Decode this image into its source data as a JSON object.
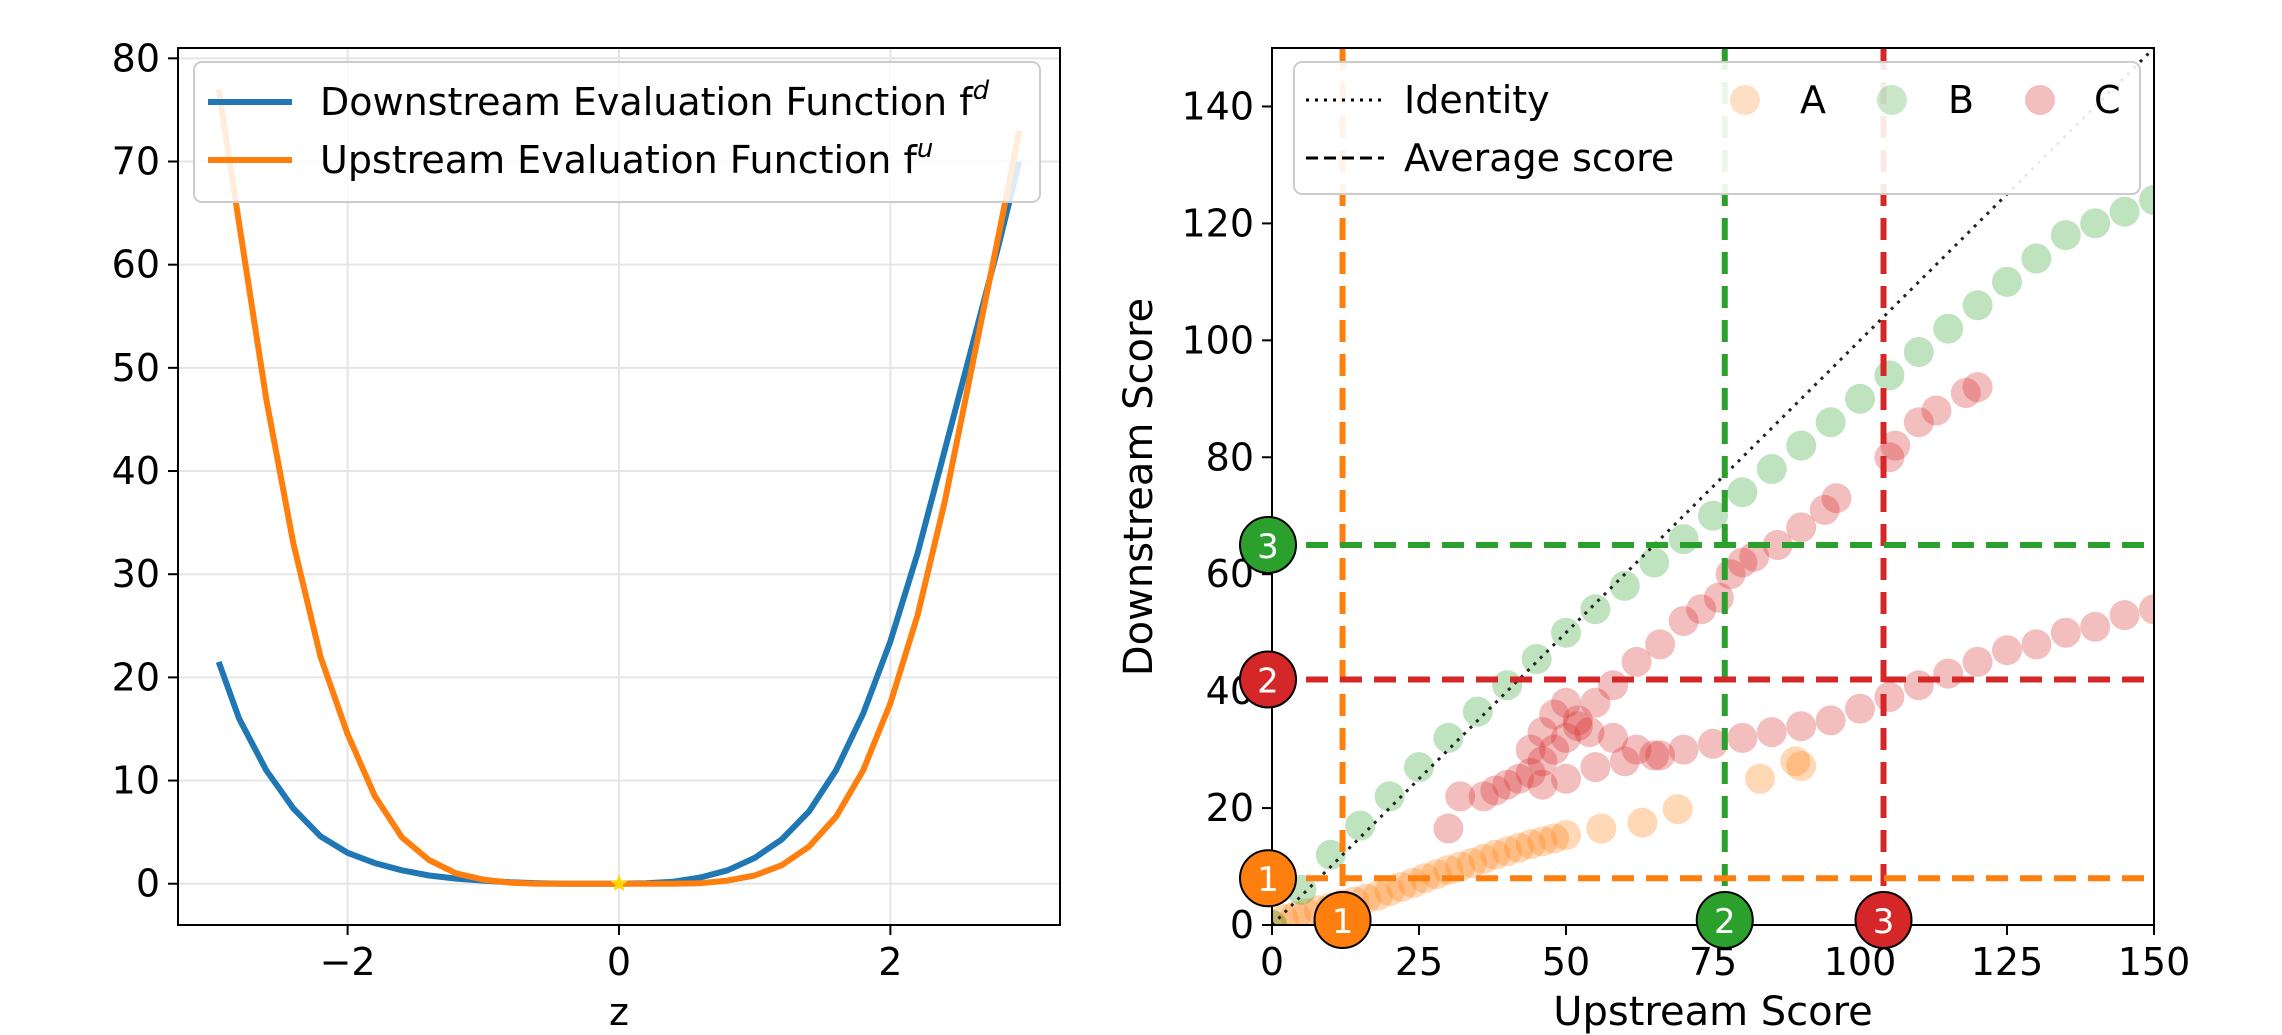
{
  "chart_data": [
    {
      "type": "line",
      "title": "",
      "xlabel": "z",
      "ylabel": "",
      "xlim": [
        -3.25,
        3.25
      ],
      "ylim": [
        -4,
        81
      ],
      "xticks": [
        -2,
        0,
        2
      ],
      "xtick_labels": [
        "−2",
        "0",
        "2"
      ],
      "yticks": [
        0,
        10,
        20,
        30,
        40,
        50,
        60,
        70,
        80
      ],
      "ytick_labels": [
        "0",
        "10",
        "20",
        "30",
        "40",
        "50",
        "60",
        "70",
        "80"
      ],
      "grid": true,
      "legend_position": "top",
      "legend": [
        {
          "label": "Downstream Evaluation Function f",
          "sup": "d",
          "color": "#1f77b4"
        },
        {
          "label": "Upstream Evaluation Function f",
          "sup": "u",
          "color": "#ff7f0e"
        }
      ],
      "series": [
        {
          "name": "Downstream Evaluation Function f^d",
          "color": "#1f77b4",
          "x": [
            -2.95,
            -2.8,
            -2.6,
            -2.4,
            -2.2,
            -2.0,
            -1.8,
            -1.6,
            -1.4,
            -1.2,
            -1.0,
            -0.8,
            -0.6,
            -0.4,
            -0.2,
            0.0,
            0.2,
            0.4,
            0.6,
            0.8,
            1.0,
            1.2,
            1.4,
            1.6,
            1.8,
            2.0,
            2.2,
            2.4,
            2.6,
            2.8,
            2.95
          ],
          "y": [
            21.5,
            16.0,
            11.0,
            7.3,
            4.6,
            3.0,
            2.0,
            1.3,
            0.8,
            0.5,
            0.3,
            0.15,
            0.05,
            0.0,
            0.0,
            0.0,
            0.05,
            0.2,
            0.6,
            1.3,
            2.5,
            4.3,
            7.0,
            11.0,
            16.5,
            23.5,
            32.0,
            42.0,
            52.0,
            62.0,
            70.0
          ]
        },
        {
          "name": "Upstream Evaluation Function f^u",
          "color": "#ff7f0e",
          "x": [
            -2.95,
            -2.8,
            -2.6,
            -2.4,
            -2.2,
            -2.0,
            -1.8,
            -1.6,
            -1.4,
            -1.2,
            -1.0,
            -0.8,
            -0.6,
            -0.4,
            -0.2,
            0.0,
            0.2,
            0.4,
            0.6,
            0.8,
            1.0,
            1.2,
            1.4,
            1.6,
            1.8,
            2.0,
            2.2,
            2.4,
            2.6,
            2.8,
            2.95
          ],
          "y": [
            77.0,
            64.0,
            47.0,
            33.0,
            22.0,
            14.5,
            8.5,
            4.5,
            2.3,
            1.0,
            0.4,
            0.1,
            0.0,
            0.0,
            0.0,
            0.0,
            0.0,
            0.0,
            0.05,
            0.3,
            0.8,
            1.8,
            3.6,
            6.5,
            11.0,
            17.5,
            26.0,
            37.0,
            50.0,
            63.0,
            73.0
          ]
        }
      ],
      "marker": {
        "x": 0,
        "y": 0,
        "shape": "star",
        "color": "#ffd700"
      }
    },
    {
      "type": "scatter",
      "title": "",
      "xlabel": "Upstream Score",
      "ylabel": "Downstream Score",
      "xlim": [
        0,
        150
      ],
      "ylim": [
        0,
        150
      ],
      "xticks": [
        0,
        25,
        50,
        75,
        100,
        125,
        150
      ],
      "xtick_labels": [
        "0",
        "25",
        "50",
        "75",
        "100",
        "125",
        "150"
      ],
      "yticks": [
        0,
        20,
        40,
        60,
        80,
        100,
        120,
        140
      ],
      "ytick_labels": [
        "0",
        "20",
        "40",
        "60",
        "80",
        "100",
        "120",
        "140"
      ],
      "grid": false,
      "legend_position": "top",
      "legend_lines": [
        {
          "label": "Identity",
          "style": "dotted"
        },
        {
          "label": "Average score",
          "style": "dashed"
        }
      ],
      "series": [
        {
          "name": "A",
          "color": "#ff7f0e",
          "points": [
            [
              0,
              0
            ],
            [
              2,
              1
            ],
            [
              4,
              1.5
            ],
            [
              6,
              2
            ],
            [
              8,
              2.5
            ],
            [
              10,
              3
            ],
            [
              12,
              3.5
            ],
            [
              14,
              4
            ],
            [
              16,
              4.5
            ],
            [
              18,
              5
            ],
            [
              20,
              5.8
            ],
            [
              22,
              6.5
            ],
            [
              24,
              7.2
            ],
            [
              26,
              8
            ],
            [
              28,
              8.7
            ],
            [
              30,
              9.4
            ],
            [
              32,
              10
            ],
            [
              34,
              10.6
            ],
            [
              36,
              11.3
            ],
            [
              38,
              12
            ],
            [
              40,
              12.6
            ],
            [
              42,
              13.2
            ],
            [
              44,
              13.8
            ],
            [
              46,
              14.3
            ],
            [
              48,
              14.8
            ],
            [
              50,
              15.4
            ],
            [
              56,
              16.5
            ],
            [
              63,
              17.5
            ],
            [
              69,
              19.8
            ],
            [
              83,
              25
            ],
            [
              90,
              27.2
            ],
            [
              89,
              28
            ]
          ]
        },
        {
          "name": "B",
          "color": "#2ca02c",
          "points": [
            [
              0,
              0
            ],
            [
              5,
              6
            ],
            [
              10,
              12
            ],
            [
              15,
              17
            ],
            [
              20,
              22
            ],
            [
              25,
              27
            ],
            [
              30,
              32
            ],
            [
              35,
              36.5
            ],
            [
              40,
              41
            ],
            [
              45,
              45.5
            ],
            [
              50,
              50
            ],
            [
              55,
              54
            ],
            [
              60,
              58
            ],
            [
              65,
              62
            ],
            [
              70,
              66
            ],
            [
              75,
              70
            ],
            [
              80,
              74
            ],
            [
              85,
              78
            ],
            [
              90,
              82
            ],
            [
              95,
              86
            ],
            [
              100,
              90
            ],
            [
              105,
              94
            ],
            [
              110,
              98
            ],
            [
              115,
              102
            ],
            [
              120,
              106
            ],
            [
              125,
              110
            ],
            [
              130,
              114
            ],
            [
              135,
              118
            ],
            [
              140,
              120
            ],
            [
              145,
              122
            ],
            [
              150,
              124
            ]
          ]
        },
        {
          "name": "C",
          "color": "#d62728",
          "points": [
            [
              30,
              16.5
            ],
            [
              32,
              22
            ],
            [
              36,
              22
            ],
            [
              38,
              23
            ],
            [
              40,
              24
            ],
            [
              42,
              25
            ],
            [
              44,
              26
            ],
            [
              46,
              28
            ],
            [
              48,
              30
            ],
            [
              50,
              32
            ],
            [
              52,
              34
            ],
            [
              55,
              38
            ],
            [
              58,
              41
            ],
            [
              62,
              45
            ],
            [
              66,
              48
            ],
            [
              70,
              52
            ],
            [
              73,
              54
            ],
            [
              76,
              56
            ],
            [
              78,
              60
            ],
            [
              80,
              62
            ],
            [
              82,
              63
            ],
            [
              86,
              65
            ],
            [
              90,
              68
            ],
            [
              94,
              71
            ],
            [
              96,
              73
            ],
            [
              105,
              80
            ],
            [
              106,
              82
            ],
            [
              110,
              86
            ],
            [
              113,
              88
            ],
            [
              118,
              91
            ],
            [
              120,
              92
            ],
            [
              46,
              24
            ],
            [
              50,
              25
            ],
            [
              55,
              27
            ],
            [
              60,
              28
            ],
            [
              65,
              29
            ],
            [
              70,
              30
            ],
            [
              75,
              31
            ],
            [
              80,
              32
            ],
            [
              85,
              33
            ],
            [
              90,
              34
            ],
            [
              95,
              35
            ],
            [
              100,
              37
            ],
            [
              105,
              39
            ],
            [
              110,
              41
            ],
            [
              115,
              43
            ],
            [
              120,
              45
            ],
            [
              125,
              47
            ],
            [
              130,
              48
            ],
            [
              135,
              50
            ],
            [
              140,
              51
            ],
            [
              145,
              53
            ],
            [
              150,
              54
            ],
            [
              44,
              30
            ],
            [
              46,
              33
            ],
            [
              48,
              36
            ],
            [
              50,
              38
            ],
            [
              52,
              35
            ],
            [
              54,
              33
            ],
            [
              58,
              32
            ],
            [
              62,
              30
            ],
            [
              66,
              29
            ]
          ]
        }
      ],
      "average_lines": [
        {
          "orientation": "vertical",
          "value": 12,
          "color": "#ff7f0e",
          "badge": "1"
        },
        {
          "orientation": "vertical",
          "value": 77,
          "color": "#2ca02c",
          "badge": "2"
        },
        {
          "orientation": "vertical",
          "value": 104,
          "color": "#d62728",
          "badge": "3"
        },
        {
          "orientation": "horizontal",
          "value": 8,
          "color": "#ff7f0e",
          "badge": "1"
        },
        {
          "orientation": "horizontal",
          "value": 42,
          "color": "#d62728",
          "badge": "2"
        },
        {
          "orientation": "horizontal",
          "value": 65,
          "color": "#2ca02c",
          "badge": "3"
        }
      ]
    }
  ]
}
